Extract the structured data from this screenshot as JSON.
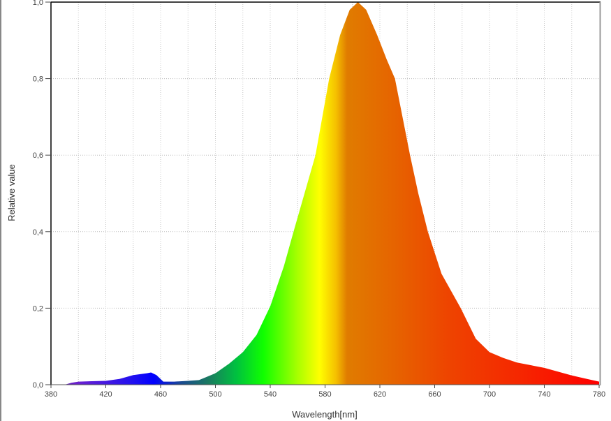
{
  "chart_data": {
    "type": "area",
    "title": "",
    "xlabel": "Wavelength[nm]",
    "ylabel": "Relative value",
    "xlim": [
      380,
      780
    ],
    "ylim": [
      0,
      1.0
    ],
    "grid": true,
    "x_ticks": [
      "380",
      "420",
      "460",
      "500",
      "540",
      "580",
      "620",
      "660",
      "700",
      "740",
      "780"
    ],
    "x_tick_values": [
      380,
      420,
      460,
      500,
      540,
      580,
      620,
      660,
      700,
      740,
      780
    ],
    "x_grid_step": 20,
    "y_ticks": [
      "0,0",
      "0,2",
      "0,4",
      "0,6",
      "0,8",
      "1,0"
    ],
    "y_tick_values": [
      0,
      0.2,
      0.4,
      0.6,
      0.8,
      1.0
    ],
    "fill": "visible-spectrum gradient",
    "gradient_stops": [
      {
        "nm": 380,
        "color": "#5a1aa0"
      },
      {
        "nm": 400,
        "color": "#6a20d0"
      },
      {
        "nm": 440,
        "color": "#2010f0"
      },
      {
        "nm": 455,
        "color": "#0000ff"
      },
      {
        "nm": 475,
        "color": "#1a4a90"
      },
      {
        "nm": 495,
        "color": "#1a7a60"
      },
      {
        "nm": 515,
        "color": "#00c040"
      },
      {
        "nm": 535,
        "color": "#10ff00"
      },
      {
        "nm": 560,
        "color": "#a8ff00"
      },
      {
        "nm": 576,
        "color": "#ffff00"
      },
      {
        "nm": 588,
        "color": "#f5c000"
      },
      {
        "nm": 596,
        "color": "#e07c00"
      },
      {
        "nm": 630,
        "color": "#e66400"
      },
      {
        "nm": 670,
        "color": "#ee4400"
      },
      {
        "nm": 720,
        "color": "#f52800"
      },
      {
        "nm": 780,
        "color": "#ff0000"
      }
    ],
    "x": [
      380,
      390,
      395,
      400,
      420,
      430,
      440,
      450,
      453,
      457,
      462,
      470,
      480,
      488,
      500,
      510,
      520,
      530,
      540,
      550,
      557,
      565,
      573,
      583,
      591,
      598,
      604,
      610,
      618,
      625,
      631,
      642,
      648,
      655,
      665,
      679,
      690,
      700,
      710,
      720,
      740,
      760,
      770,
      780
    ],
    "values": [
      0,
      0,
      0.005,
      0.008,
      0.01,
      0.015,
      0.025,
      0.03,
      0.032,
      0.025,
      0.008,
      0.008,
      0.01,
      0.012,
      0.03,
      0.055,
      0.085,
      0.13,
      0.205,
      0.31,
      0.4,
      0.5,
      0.6,
      0.8,
      0.914,
      0.98,
      1.0,
      0.98,
      0.914,
      0.85,
      0.8,
      0.6,
      0.5,
      0.4,
      0.29,
      0.2,
      0.12,
      0.085,
      0.07,
      0.058,
      0.044,
      0.024,
      0.016,
      0.008
    ]
  }
}
